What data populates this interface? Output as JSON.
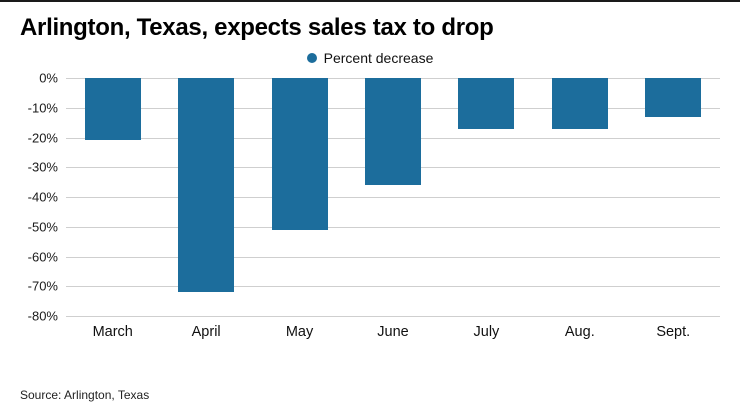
{
  "title": "Arlington, Texas, expects sales tax to drop",
  "source": "Source: Arlington, Texas",
  "colors": {
    "bar": "#1c6d9c",
    "gridline": "#cfcfcf"
  },
  "chart_data": {
    "type": "bar",
    "title": "Arlington, Texas, expects sales tax to drop",
    "legend": [
      {
        "name": "Percent decrease",
        "color": "#1c6d9c"
      }
    ],
    "legend_position": "top-center",
    "categories": [
      "March",
      "April",
      "May",
      "June",
      "July",
      "Aug.",
      "Sept."
    ],
    "values": [
      -21,
      -72,
      -51,
      -36,
      -17,
      -17,
      -13
    ],
    "xlabel": "",
    "ylabel": "",
    "ylim": [
      -80,
      0
    ],
    "yticks": [
      "0%",
      "-10%",
      "-20%",
      "-30%",
      "-40%",
      "-50%",
      "-60%",
      "-70%",
      "-80%"
    ],
    "grid": "horizontal",
    "source": "Source: Arlington, Texas"
  }
}
